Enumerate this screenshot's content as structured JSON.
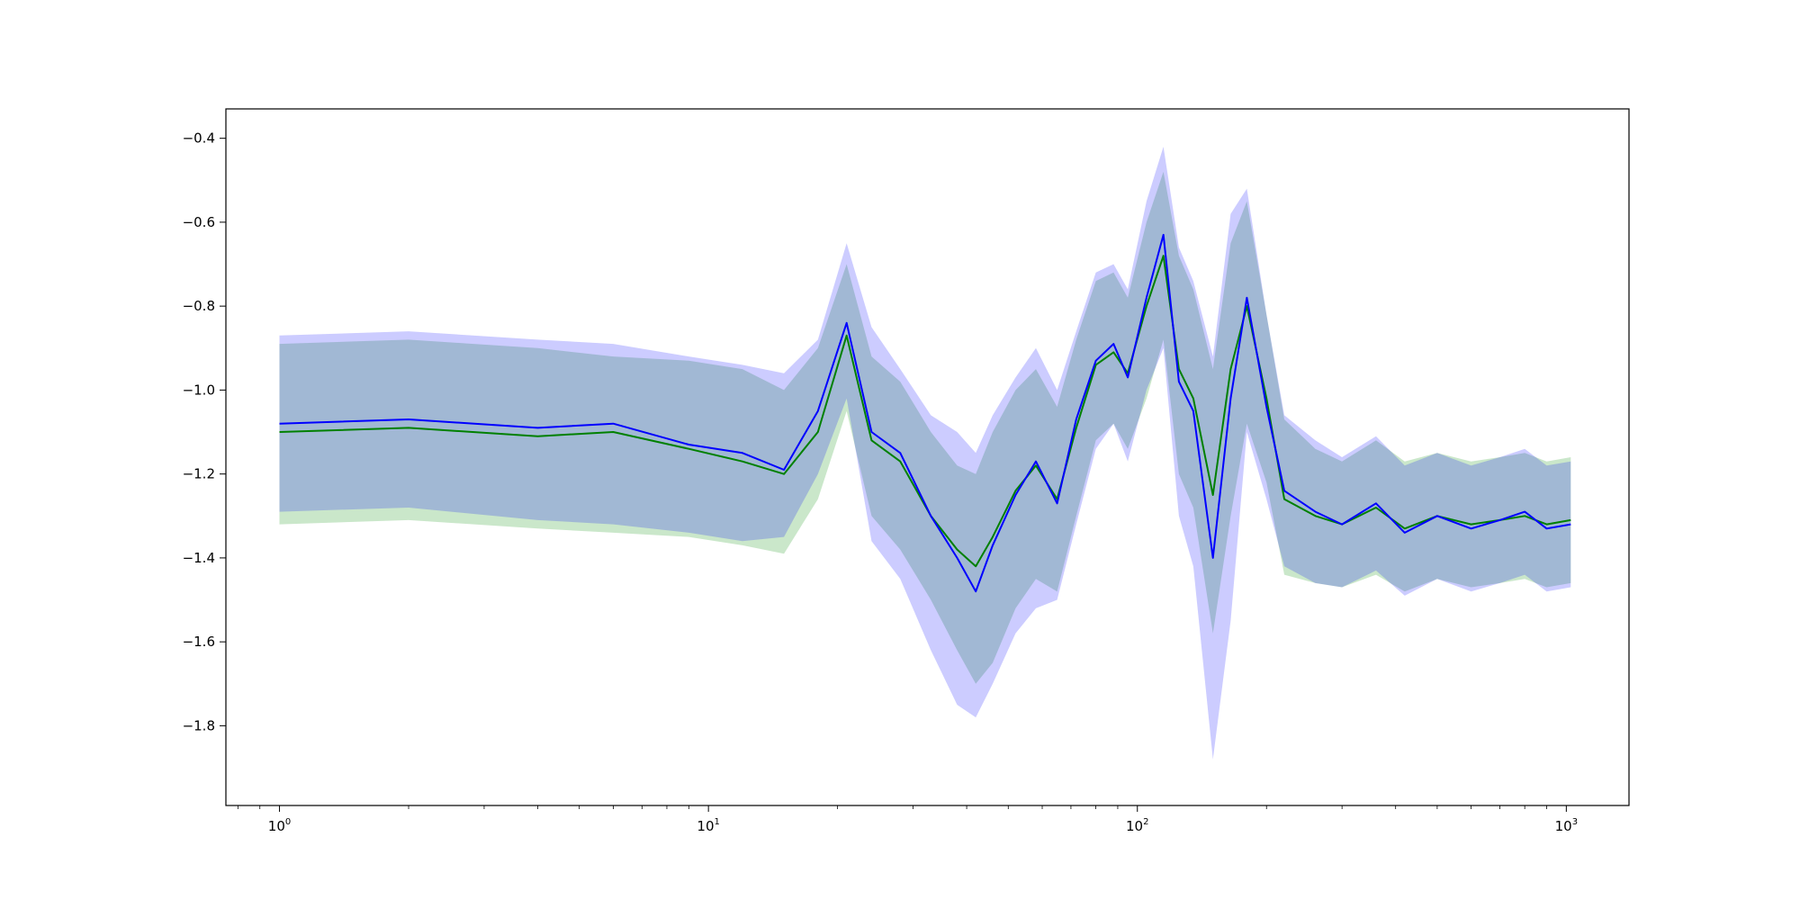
{
  "chart_data": {
    "type": "line",
    "title": "",
    "xlabel": "",
    "ylabel": "",
    "xscale": "log",
    "xlim": [
      0.75,
      1400
    ],
    "ylim": [
      -1.99,
      -0.33
    ],
    "grid": false,
    "legend": "none",
    "x_ticks": [
      {
        "base": "10",
        "exp": "0",
        "value": 1
      },
      {
        "base": "10",
        "exp": "1",
        "value": 10
      },
      {
        "base": "10",
        "exp": "2",
        "value": 100
      },
      {
        "base": "10",
        "exp": "3",
        "value": 1000
      }
    ],
    "y_ticks": [
      {
        "label": "−0.4",
        "value": -0.4
      },
      {
        "label": "−0.6",
        "value": -0.6
      },
      {
        "label": "−0.8",
        "value": -0.8
      },
      {
        "label": "−1.0",
        "value": -1.0
      },
      {
        "label": "−1.2",
        "value": -1.2
      },
      {
        "label": "−1.4",
        "value": -1.4
      },
      {
        "label": "−1.6",
        "value": -1.6
      },
      {
        "label": "−1.8",
        "value": -1.8
      }
    ],
    "series": [
      {
        "color": "#008000",
        "band_color": "#2ca02c",
        "band_opacity": 0.25,
        "x": [
          1,
          2,
          4,
          6,
          9,
          12,
          15,
          18,
          21,
          24,
          28,
          33,
          38,
          42,
          46,
          52,
          58,
          65,
          72,
          80,
          88,
          95,
          105,
          115,
          125,
          135,
          150,
          165,
          180,
          200,
          220,
          260,
          300,
          360,
          420,
          500,
          600,
          700,
          800,
          900,
          1024
        ],
        "y": [
          -1.1,
          -1.09,
          -1.11,
          -1.1,
          -1.14,
          -1.17,
          -1.2,
          -1.1,
          -0.87,
          -1.12,
          -1.17,
          -1.3,
          -1.38,
          -1.42,
          -1.35,
          -1.24,
          -1.18,
          -1.26,
          -1.09,
          -0.94,
          -0.91,
          -0.96,
          -0.8,
          -0.68,
          -0.95,
          -1.02,
          -1.25,
          -0.95,
          -0.8,
          -1.02,
          -1.26,
          -1.3,
          -1.32,
          -1.28,
          -1.33,
          -1.3,
          -1.32,
          -1.31,
          -1.3,
          -1.32,
          -1.31
        ],
        "lower": [
          -1.32,
          -1.31,
          -1.33,
          -1.34,
          -1.35,
          -1.37,
          -1.39,
          -1.26,
          -1.05,
          -1.3,
          -1.38,
          -1.5,
          -1.62,
          -1.7,
          -1.65,
          -1.52,
          -1.45,
          -1.48,
          -1.3,
          -1.12,
          -1.08,
          -1.14,
          -1.02,
          -0.88,
          -1.2,
          -1.28,
          -1.58,
          -1.3,
          -1.08,
          -1.22,
          -1.44,
          -1.46,
          -1.47,
          -1.44,
          -1.48,
          -1.45,
          -1.47,
          -1.46,
          -1.45,
          -1.47,
          -1.46
        ],
        "upper": [
          -0.89,
          -0.88,
          -0.9,
          -0.92,
          -0.93,
          -0.95,
          -1.0,
          -0.9,
          -0.7,
          -0.92,
          -0.98,
          -1.1,
          -1.18,
          -1.2,
          -1.1,
          -1.0,
          -0.95,
          -1.04,
          -0.88,
          -0.74,
          -0.72,
          -0.78,
          -0.6,
          -0.48,
          -0.68,
          -0.76,
          -0.95,
          -0.65,
          -0.55,
          -0.82,
          -1.07,
          -1.14,
          -1.17,
          -1.12,
          -1.17,
          -1.15,
          -1.17,
          -1.16,
          -1.15,
          -1.17,
          -1.16
        ]
      },
      {
        "color": "#0000ff",
        "band_color": "#0000ff",
        "band_opacity": 0.2,
        "x": [
          1,
          2,
          4,
          6,
          9,
          12,
          15,
          18,
          21,
          24,
          28,
          33,
          38,
          42,
          46,
          52,
          58,
          65,
          72,
          80,
          88,
          95,
          105,
          115,
          125,
          135,
          150,
          165,
          180,
          200,
          220,
          260,
          300,
          360,
          420,
          500,
          600,
          700,
          800,
          900,
          1024
        ],
        "y": [
          -1.08,
          -1.07,
          -1.09,
          -1.08,
          -1.13,
          -1.15,
          -1.19,
          -1.05,
          -0.84,
          -1.1,
          -1.15,
          -1.3,
          -1.4,
          -1.48,
          -1.37,
          -1.25,
          -1.17,
          -1.27,
          -1.07,
          -0.93,
          -0.89,
          -0.97,
          -0.78,
          -0.63,
          -0.98,
          -1.05,
          -1.4,
          -1.02,
          -0.78,
          -1.04,
          -1.24,
          -1.29,
          -1.32,
          -1.27,
          -1.34,
          -1.3,
          -1.33,
          -1.31,
          -1.29,
          -1.33,
          -1.32
        ],
        "lower": [
          -1.29,
          -1.28,
          -1.31,
          -1.32,
          -1.34,
          -1.36,
          -1.35,
          -1.2,
          -1.02,
          -1.36,
          -1.45,
          -1.62,
          -1.75,
          -1.78,
          -1.7,
          -1.58,
          -1.52,
          -1.5,
          -1.32,
          -1.14,
          -1.08,
          -1.17,
          -1.0,
          -0.9,
          -1.3,
          -1.42,
          -1.88,
          -1.55,
          -1.1,
          -1.26,
          -1.42,
          -1.46,
          -1.47,
          -1.43,
          -1.49,
          -1.45,
          -1.48,
          -1.46,
          -1.44,
          -1.48,
          -1.47
        ],
        "upper": [
          -0.87,
          -0.86,
          -0.88,
          -0.89,
          -0.92,
          -0.94,
          -0.96,
          -0.88,
          -0.65,
          -0.85,
          -0.95,
          -1.06,
          -1.1,
          -1.15,
          -1.06,
          -0.97,
          -0.9,
          -1.0,
          -0.86,
          -0.72,
          -0.7,
          -0.76,
          -0.55,
          -0.42,
          -0.66,
          -0.74,
          -0.92,
          -0.58,
          -0.52,
          -0.82,
          -1.06,
          -1.12,
          -1.16,
          -1.11,
          -1.18,
          -1.15,
          -1.18,
          -1.16,
          -1.14,
          -1.18,
          -1.17
        ]
      }
    ]
  }
}
